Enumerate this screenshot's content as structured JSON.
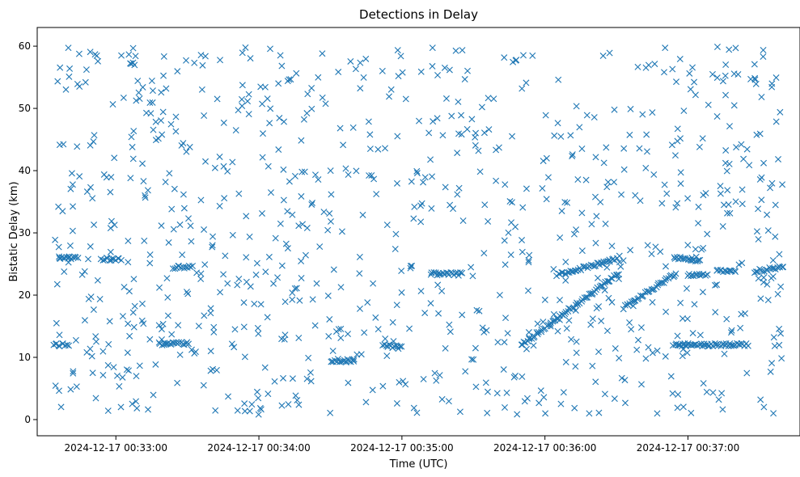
{
  "chart_data": {
    "type": "scatter",
    "title": "Detections in Delay",
    "xlabel": "Time (UTC)",
    "ylabel": "Bistatic Delay (km)",
    "marker": "x",
    "color": "#1f77b4",
    "grid": false,
    "xlim": [
      "2024-12-17 00:32:27",
      "2024-12-17 00:37:47"
    ],
    "ylim": [
      -2.6,
      63
    ],
    "x_ticks": [
      "2024-12-17 00:33:00",
      "2024-12-17 00:34:00",
      "2024-12-17 00:35:00",
      "2024-12-17 00:36:00",
      "2024-12-17 00:37:00"
    ],
    "y_ticks": [
      "0",
      "10",
      "20",
      "30",
      "40",
      "50",
      "60"
    ],
    "x_start": "2024-12-17 00:32:34",
    "x_end": "2024-12-17 00:37:40",
    "tracks": [
      {
        "t0": "2024-12-17 00:32:34",
        "t1": "2024-12-17 00:32:40",
        "y0": 12.0,
        "y1": 12.0
      },
      {
        "t0": "2024-12-17 00:32:36",
        "t1": "2024-12-17 00:32:44",
        "y0": 26.0,
        "y1": 26.0
      },
      {
        "t0": "2024-12-17 00:32:54",
        "t1": "2024-12-17 00:33:02",
        "y0": 25.8,
        "y1": 25.8
      },
      {
        "t0": "2024-12-17 00:33:18",
        "t1": "2024-12-17 00:33:30",
        "y0": 12.2,
        "y1": 12.2
      },
      {
        "t0": "2024-12-17 00:33:24",
        "t1": "2024-12-17 00:33:32",
        "y0": 24.5,
        "y1": 24.5
      },
      {
        "t0": "2024-12-17 00:34:30",
        "t1": "2024-12-17 00:34:40",
        "y0": 9.5,
        "y1": 9.5
      },
      {
        "t0": "2024-12-17 00:34:52",
        "t1": "2024-12-17 00:35:00",
        "y0": 12.0,
        "y1": 11.5
      },
      {
        "t0": "2024-12-17 00:35:12",
        "t1": "2024-12-17 00:35:25",
        "y0": 23.4,
        "y1": 23.4
      },
      {
        "t0": "2024-12-17 00:35:50",
        "t1": "2024-12-17 00:36:31",
        "y0": 12.0,
        "y1": 23.5
      },
      {
        "t0": "2024-12-17 00:36:05",
        "t1": "2024-12-17 00:36:30",
        "y0": 23.2,
        "y1": 25.8
      },
      {
        "t0": "2024-12-17 00:36:33",
        "t1": "2024-12-17 00:36:55",
        "y0": 18.0,
        "y1": 23.5
      },
      {
        "t0": "2024-12-17 00:36:54",
        "t1": "2024-12-17 00:37:05",
        "y0": 26.0,
        "y1": 25.6
      },
      {
        "t0": "2024-12-17 00:36:54",
        "t1": "2024-12-17 00:37:25",
        "y0": 12.0,
        "y1": 12.0
      },
      {
        "t0": "2024-12-17 00:37:00",
        "t1": "2024-12-17 00:37:08",
        "y0": 23.3,
        "y1": 23.3
      },
      {
        "t0": "2024-12-17 00:37:12",
        "t1": "2024-12-17 00:37:20",
        "y0": 23.8,
        "y1": 23.8
      },
      {
        "t0": "2024-12-17 00:37:28",
        "t1": "2024-12-17 00:37:40",
        "y0": 23.8,
        "y1": 24.6
      }
    ]
  }
}
